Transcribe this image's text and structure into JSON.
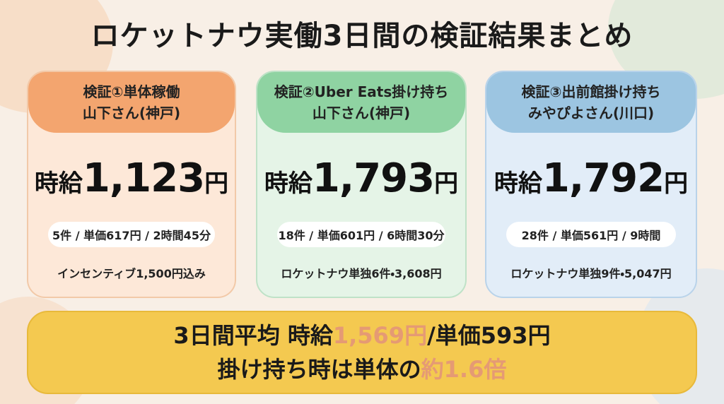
{
  "title": "ロケットナウ実働3日間の検証結果まとめ",
  "cards": [
    {
      "header": [
        "検証①単体稼働",
        "山下さん(神戸)"
      ],
      "wage_prefix": "時給",
      "wage_amount": "1,123",
      "wage_unit": "円",
      "detail": "5件 / 単価617円 / 2時間45分",
      "note": "インセンティブ1,500円込み"
    },
    {
      "header": [
        "検証②Uber Eats掛け持ち",
        "山下さん(神戸)"
      ],
      "wage_prefix": "時給",
      "wage_amount": "1,793",
      "wage_unit": "円",
      "detail": "18件 / 単価601円 / 6時間30分",
      "note": "ロケットナウ単独6件・3,608円"
    },
    {
      "header": [
        "検証③出前館掛け持ち",
        "みやぴよさん(川口)"
      ],
      "wage_prefix": "時給",
      "wage_amount": "1,792",
      "wage_unit": "円",
      "detail": "28件 / 単価561円 / 9時間",
      "note": "ロケットナウ単独9件・5,047円"
    }
  ],
  "summary": {
    "line1": [
      "3日間平均 時給",
      "1,569円",
      "/単価593円"
    ],
    "line2": [
      "掛け持ち時は単体の",
      "約1.6倍"
    ]
  }
}
